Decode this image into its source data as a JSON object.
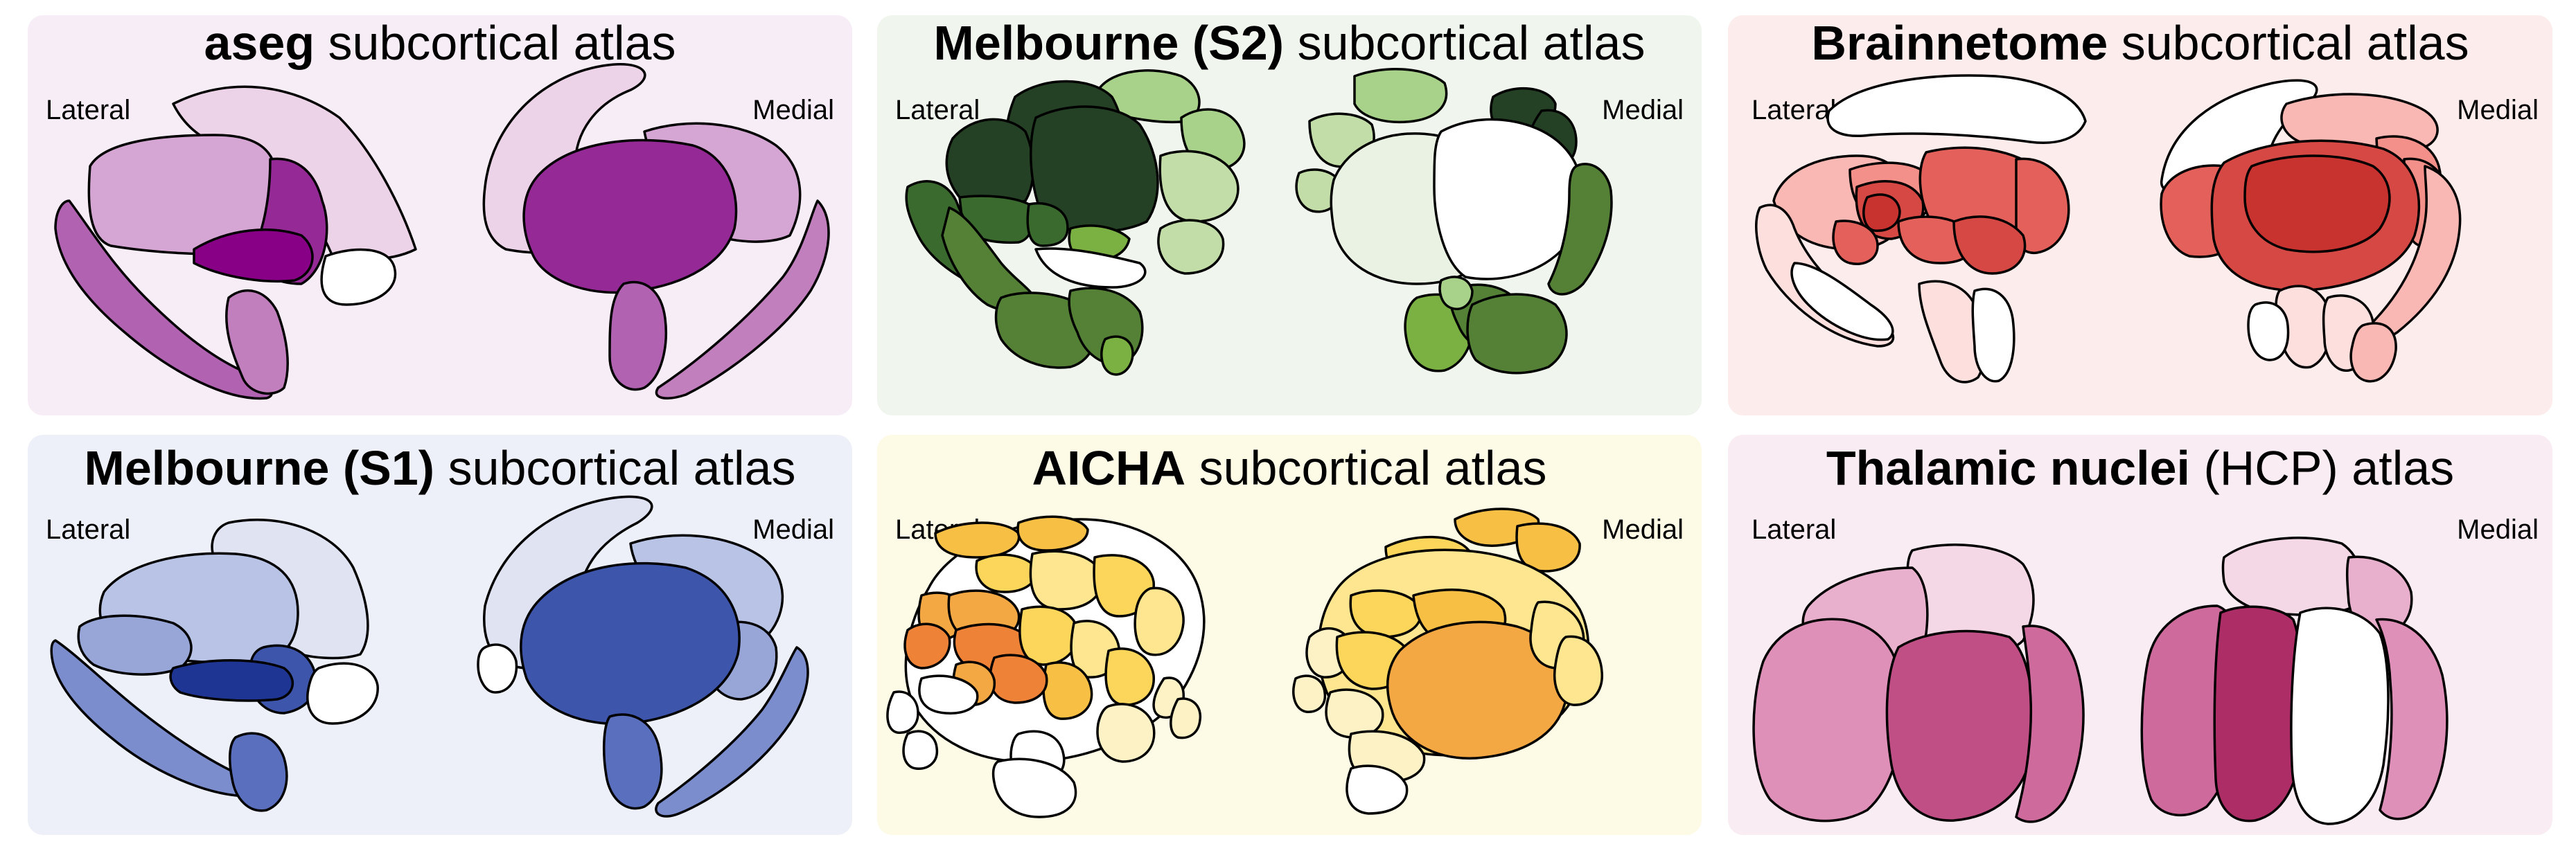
{
  "panels": [
    {
      "title_bold": "aseg",
      "title_rest": " subcortical atlas",
      "label_left": "Lateral",
      "label_right": "Medial",
      "background": "#f7edf7",
      "palette": [
        "#ecd3e8",
        "#d5a6d3",
        "#c27fbd",
        "#b163b2",
        "#952a96",
        "#880086",
        "#ffffff"
      ]
    },
    {
      "title_bold": "Melbourne (S2)",
      "title_rest": " subcortical atlas",
      "label_left": "Lateral",
      "label_right": "Medial",
      "background": "#f0f6ee",
      "palette": [
        "#254125",
        "#3b6a2e",
        "#558137",
        "#7bb042",
        "#a8d18a",
        "#c2dda8",
        "#eaf3e3",
        "#ffffff"
      ]
    },
    {
      "title_bold": "Brainnetome",
      "title_rest": " subcortical atlas",
      "label_left": "Lateral",
      "label_right": "Medial",
      "background": "#fceceb",
      "palette": [
        "#ffffff",
        "#fde0de",
        "#f9b8b4",
        "#f39089",
        "#e4605a",
        "#d54843",
        "#c8322f"
      ]
    },
    {
      "title_bold": "Melbourne (S1)",
      "title_rest": " subcortical atlas",
      "label_left": "Lateral",
      "label_right": "Medial",
      "background": "#edf0f8",
      "palette": [
        "#dfe3f2",
        "#b9c3e5",
        "#97a5d7",
        "#7b8dcc",
        "#5a6fbd",
        "#3d55aa",
        "#1f3594",
        "#ffffff"
      ]
    },
    {
      "title_bold": "AICHA",
      "title_rest": " subcortical atlas",
      "label_left": "Lateral",
      "label_right": "Medial",
      "background": "#fdfae6",
      "palette": [
        "#ffffff",
        "#fdf2c6",
        "#fde68f",
        "#fbd65a",
        "#f8bf45",
        "#f3a843",
        "#ee8236"
      ]
    },
    {
      "title_bold": "Thalamic nuclei",
      "title_rest": " (HCP) atlas",
      "label_left": "Lateral",
      "label_right": "Medial",
      "background": "#f9ecf2",
      "palette": [
        "#f4d8e6",
        "#e8b0cc",
        "#df90b8",
        "#cf6a9c",
        "#bf4f85",
        "#ad2e67",
        "#ffffff"
      ]
    }
  ]
}
